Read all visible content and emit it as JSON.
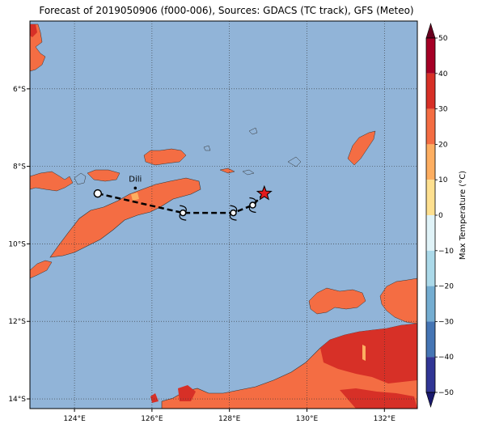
{
  "title": "Forecast of 2019050906 (f000-006), Sources: GDACS (TC track), GFS (Meteo)",
  "map": {
    "lon_range": [
      122.85,
      132.85
    ],
    "lat_range": [
      -14.25,
      -4.25
    ],
    "lon_ticks": [
      {
        "value": 124,
        "label": "124°E"
      },
      {
        "value": 126,
        "label": "126°E"
      },
      {
        "value": 128,
        "label": "128°E"
      },
      {
        "value": 130,
        "label": "130°E"
      },
      {
        "value": 132,
        "label": "132°E"
      }
    ],
    "lat_ticks": [
      {
        "value": -6,
        "label": "6°S"
      },
      {
        "value": -8,
        "label": "8°S"
      },
      {
        "value": -10,
        "label": "10°S"
      },
      {
        "value": -12,
        "label": "12°S"
      },
      {
        "value": -14,
        "label": "14°S"
      }
    ],
    "grid": true,
    "ocean_color": "#91b4d8",
    "land_color": "#f46d43",
    "hot_land_color": "#d73027",
    "city": {
      "name": "Dili",
      "lon": 125.57,
      "lat": -8.56
    },
    "track": [
      {
        "lon": 124.6,
        "lat": -8.7,
        "symbol": "circle"
      },
      {
        "lon": 126.8,
        "lat": -9.2,
        "symbol": "cyclone"
      },
      {
        "lon": 128.1,
        "lat": -9.2,
        "symbol": "cyclone"
      },
      {
        "lon": 128.6,
        "lat": -9.0,
        "symbol": "cyclone"
      }
    ],
    "current_position": {
      "lon": 128.9,
      "lat": -8.7,
      "symbol": "star"
    }
  },
  "colorbar": {
    "label": "Max Temperature (°C)",
    "ticks": [
      "50",
      "40",
      "30",
      "20",
      "10",
      "0",
      "−10",
      "−20",
      "−30",
      "−40",
      "−50"
    ],
    "colors": [
      "#67001f",
      "#a50026",
      "#d73027",
      "#f46d43",
      "#fdae61",
      "#fee090",
      "#e0f3f8",
      "#abd9e9",
      "#74add1",
      "#4575b4",
      "#313695",
      "#1a1a6e"
    ]
  }
}
